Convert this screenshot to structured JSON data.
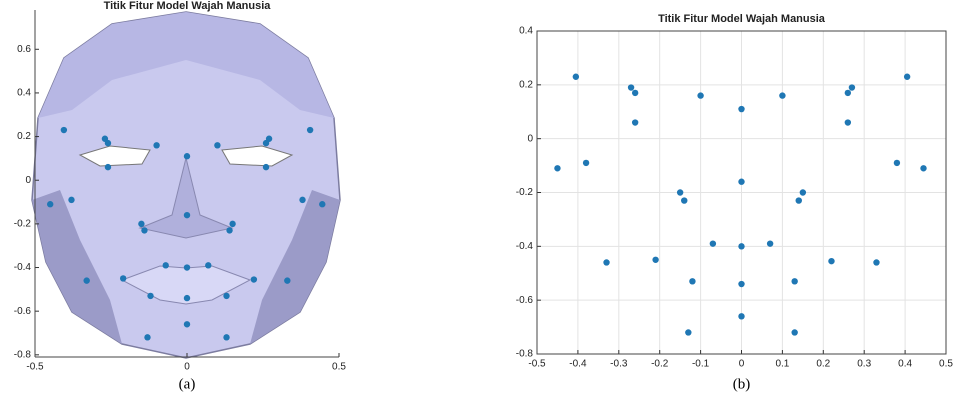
{
  "chart_data": [
    {
      "type": "scatter",
      "title": "Titik Fitur Model Wajah Manusia",
      "caption": "(a)",
      "color": "#1f77b4",
      "grid": false,
      "x": [
        -0.405,
        0.405,
        -0.27,
        -0.26,
        0.27,
        0.26,
        -0.26,
        0.26,
        -0.1,
        0.1,
        0,
        -0.45,
        -0.38,
        0.38,
        0.445,
        0,
        -0.15,
        -0.14,
        0.15,
        0.14,
        -0.07,
        0.07,
        0,
        -0.33,
        0.33,
        -0.21,
        0.22,
        -0.12,
        0.13,
        0,
        0,
        -0.13,
        0.13
      ],
      "y": [
        0.23,
        0.23,
        0.19,
        0.17,
        0.19,
        0.17,
        0.06,
        0.06,
        0.16,
        0.16,
        0.11,
        -0.11,
        -0.09,
        -0.09,
        -0.11,
        -0.16,
        -0.2,
        -0.23,
        -0.2,
        -0.23,
        -0.39,
        -0.39,
        -0.4,
        -0.46,
        -0.46,
        -0.45,
        -0.455,
        -0.53,
        -0.53,
        -0.54,
        -0.66,
        -0.72,
        -0.72
      ],
      "xlim": [
        -0.5,
        0.5
      ],
      "ylim": [
        -0.81,
        0.78
      ],
      "xticks": [
        -0.5,
        0,
        0.5
      ],
      "yticks": [
        -0.8,
        -0.6,
        -0.4,
        -0.2,
        0,
        0.2,
        0.4,
        0.6
      ]
    },
    {
      "type": "scatter",
      "title": "Titik Fitur Model Wajah Manusia",
      "caption": "(b)",
      "color": "#1f77b4",
      "grid": true,
      "x": [
        -0.405,
        0.405,
        -0.27,
        -0.26,
        0.27,
        0.26,
        -0.26,
        0.26,
        -0.1,
        0.1,
        0,
        -0.45,
        -0.38,
        0.38,
        0.445,
        0,
        -0.15,
        -0.14,
        0.15,
        0.14,
        -0.07,
        0.07,
        0,
        -0.33,
        0.33,
        -0.21,
        0.22,
        -0.12,
        0.13,
        0,
        0,
        -0.13,
        0.13
      ],
      "y": [
        0.23,
        0.23,
        0.19,
        0.17,
        0.19,
        0.17,
        0.06,
        0.06,
        0.16,
        0.16,
        0.11,
        -0.11,
        -0.09,
        -0.09,
        -0.11,
        -0.16,
        -0.2,
        -0.23,
        -0.2,
        -0.23,
        -0.39,
        -0.39,
        -0.4,
        -0.46,
        -0.46,
        -0.45,
        -0.455,
        -0.53,
        -0.53,
        -0.54,
        -0.66,
        -0.72,
        -0.72
      ],
      "xlim": [
        -0.5,
        0.5
      ],
      "ylim": [
        -0.8,
        0.4
      ],
      "xticks": [
        -0.5,
        -0.4,
        -0.3,
        -0.2,
        -0.1,
        0,
        0.1,
        0.2,
        0.3,
        0.4,
        0.5
      ],
      "yticks": [
        -0.8,
        -0.6,
        -0.4,
        -0.2,
        0,
        0.2,
        0.4
      ]
    }
  ]
}
